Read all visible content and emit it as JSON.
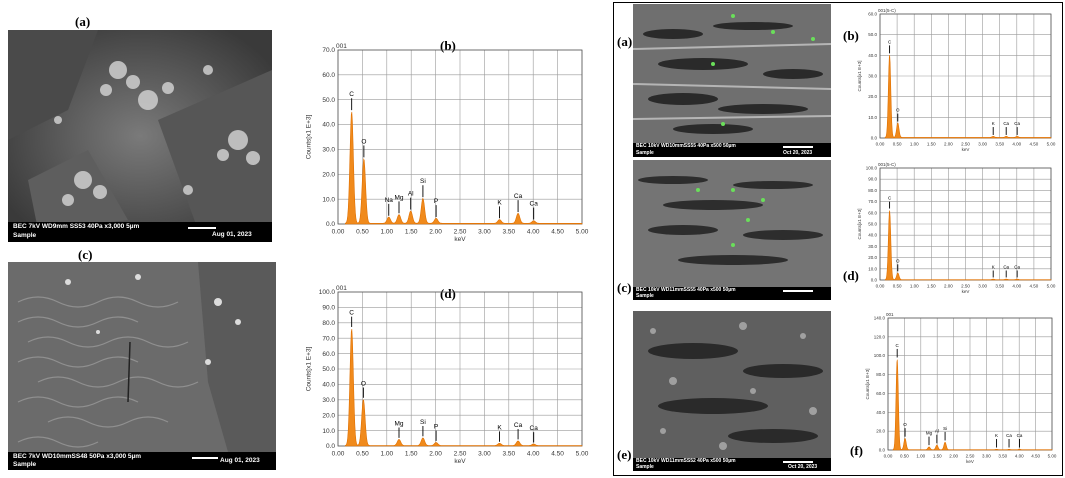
{
  "left_group": {
    "sem": [
      {
        "label": "(a)",
        "info": "BEC 7kV   WD9mm  SS53   40Pa  x3,000    5µm",
        "sample": "Sample",
        "date": "Aug 01, 2023"
      },
      {
        "label": "(c)",
        "info": "BEC 7kV   WD10mmSS48   50Pa  x3,000    5µm",
        "sample": "Sample",
        "date": "Aug 01, 2023"
      }
    ]
  },
  "right_group": {
    "sem": [
      {
        "label": "(a)",
        "info": "BEC 10kV   WD10mmSS55   40Pa  x500       50µm",
        "sample": "Sample",
        "date": "Oct 20, 2023"
      },
      {
        "label": "(c)",
        "info": "BEC 10kV   WD11mmSS55   40Pa  x500       50µm",
        "sample": "Sample",
        "date": ""
      },
      {
        "label": "(e)",
        "info": "BEC 10kV   WD11mmSS52   40Pa  x500       50µm",
        "sample": "Sample",
        "date": "Oct 20, 2023"
      }
    ]
  },
  "chart_data": [
    {
      "id": "b-left",
      "type": "line",
      "panel_label": "(b)",
      "spectrum_id": "001",
      "xlabel": "keV",
      "ylabel": "Counts[x1 E+3]",
      "xlim": [
        0,
        5
      ],
      "ylim": [
        0,
        70
      ],
      "xticks": [
        "0.00",
        "0.50",
        "1.00",
        "1.50",
        "2.00",
        "2.50",
        "3.00",
        "3.50",
        "4.00",
        "4.50",
        "5.00"
      ],
      "yticks": [
        "0.0",
        "10.0",
        "20.0",
        "30.0",
        "40.0",
        "50.0",
        "60.0",
        "70.0"
      ],
      "peaks": [
        {
          "label": "C",
          "x": 0.28,
          "y": 45
        },
        {
          "label": "O",
          "x": 0.53,
          "y": 26
        },
        {
          "label": "Na",
          "x": 1.04,
          "y": 2.5
        },
        {
          "label": "Mg",
          "x": 1.25,
          "y": 3.5
        },
        {
          "label": "Al",
          "x": 1.49,
          "y": 5
        },
        {
          "label": "Si",
          "x": 1.74,
          "y": 10
        },
        {
          "label": "P",
          "x": 2.01,
          "y": 2
        },
        {
          "label": "K",
          "x": 3.31,
          "y": 1.5
        },
        {
          "label": "Ca",
          "x": 3.69,
          "y": 4
        },
        {
          "label": "Ca",
          "x": 4.01,
          "y": 1
        }
      ]
    },
    {
      "id": "d-left",
      "type": "line",
      "panel_label": "(d)",
      "spectrum_id": "001",
      "xlabel": "keV",
      "ylabel": "Counts[x1 E+3]",
      "xlim": [
        0,
        5
      ],
      "ylim": [
        0,
        100
      ],
      "xticks": [
        "0.00",
        "0.50",
        "1.00",
        "1.50",
        "2.00",
        "2.50",
        "3.00",
        "3.50",
        "4.00",
        "4.50",
        "5.00"
      ],
      "yticks": [
        "0.0",
        "10.0",
        "20.0",
        "30.0",
        "40.0",
        "50.0",
        "60.0",
        "70.0",
        "80.0",
        "90.0",
        "100.0"
      ],
      "peaks": [
        {
          "label": "C",
          "x": 0.28,
          "y": 76
        },
        {
          "label": "O",
          "x": 0.52,
          "y": 30
        },
        {
          "label": "Mg",
          "x": 1.25,
          "y": 4
        },
        {
          "label": "Si",
          "x": 1.74,
          "y": 5
        },
        {
          "label": "P",
          "x": 2.01,
          "y": 2
        },
        {
          "label": "K",
          "x": 3.31,
          "y": 1.5
        },
        {
          "label": "Ca",
          "x": 3.69,
          "y": 3
        },
        {
          "label": "Ca",
          "x": 4.01,
          "y": 1
        }
      ]
    },
    {
      "id": "b-right",
      "type": "line",
      "panel_label": "(b)",
      "spectrum_id": "001(5-C)",
      "xlabel": "keV",
      "ylabel": "Counts[x1 E+3]",
      "xlim": [
        0,
        5
      ],
      "ylim": [
        0,
        60
      ],
      "xticks": [
        "0.00",
        "0.50",
        "1.00",
        "1.50",
        "2.00",
        "2.50",
        "3.00",
        "3.50",
        "4.00",
        "4.50",
        "5.00"
      ],
      "yticks": [
        "0.0",
        "10.0",
        "20.0",
        "30.0",
        "40.0",
        "50.0",
        "60.0"
      ],
      "peaks": [
        {
          "label": "C",
          "x": 0.28,
          "y": 40
        },
        {
          "label": "O",
          "x": 0.52,
          "y": 7
        },
        {
          "label": "K",
          "x": 3.31,
          "y": 0.5
        },
        {
          "label": "Ca",
          "x": 3.69,
          "y": 0.5
        },
        {
          "label": "Ca",
          "x": 4.01,
          "y": 0.5
        }
      ]
    },
    {
      "id": "d-right",
      "type": "line",
      "panel_label": "(d)",
      "spectrum_id": "001(5-C)",
      "xlabel": "keV",
      "ylabel": "Counts[x1 E+3]",
      "xlim": [
        0,
        5
      ],
      "ylim": [
        0,
        100
      ],
      "xticks": [
        "0.00",
        "0.50",
        "1.00",
        "1.50",
        "2.00",
        "2.50",
        "3.00",
        "3.50",
        "4.00",
        "4.50",
        "5.00"
      ],
      "yticks": [
        "0.0",
        "10.0",
        "20.0",
        "30.0",
        "40.0",
        "50.0",
        "60.0",
        "70.0",
        "80.0",
        "90.0",
        "100.0"
      ],
      "peaks": [
        {
          "label": "C",
          "x": 0.28,
          "y": 62
        },
        {
          "label": "O",
          "x": 0.52,
          "y": 6
        },
        {
          "label": "K",
          "x": 3.31,
          "y": 0.5
        },
        {
          "label": "Ca",
          "x": 3.69,
          "y": 0.5
        },
        {
          "label": "Ca",
          "x": 4.01,
          "y": 0.5
        }
      ]
    },
    {
      "id": "f-right",
      "type": "line",
      "panel_label": "(f)",
      "spectrum_id": "001",
      "xlabel": "keV",
      "ylabel": "Counts[x1 E+3]",
      "xlim": [
        0,
        5
      ],
      "ylim": [
        0,
        140
      ],
      "xticks": [
        "0.00",
        "0.50",
        "1.00",
        "1.50",
        "2.00",
        "2.50",
        "3.00",
        "3.50",
        "4.00",
        "4.50",
        "5.00"
      ],
      "yticks": [
        "0.0",
        "20.0",
        "40.0",
        "60.0",
        "80.0",
        "100.0",
        "120.0",
        "140.0"
      ],
      "peaks": [
        {
          "label": "C",
          "x": 0.28,
          "y": 96
        },
        {
          "label": "O",
          "x": 0.52,
          "y": 12
        },
        {
          "label": "Mg",
          "x": 1.25,
          "y": 3
        },
        {
          "label": "Al",
          "x": 1.49,
          "y": 5
        },
        {
          "label": "Si",
          "x": 1.74,
          "y": 8
        },
        {
          "label": "K",
          "x": 3.31,
          "y": 0.5
        },
        {
          "label": "Ca",
          "x": 3.69,
          "y": 0.5
        },
        {
          "label": "Ca",
          "x": 4.01,
          "y": 0.5
        }
      ]
    }
  ]
}
